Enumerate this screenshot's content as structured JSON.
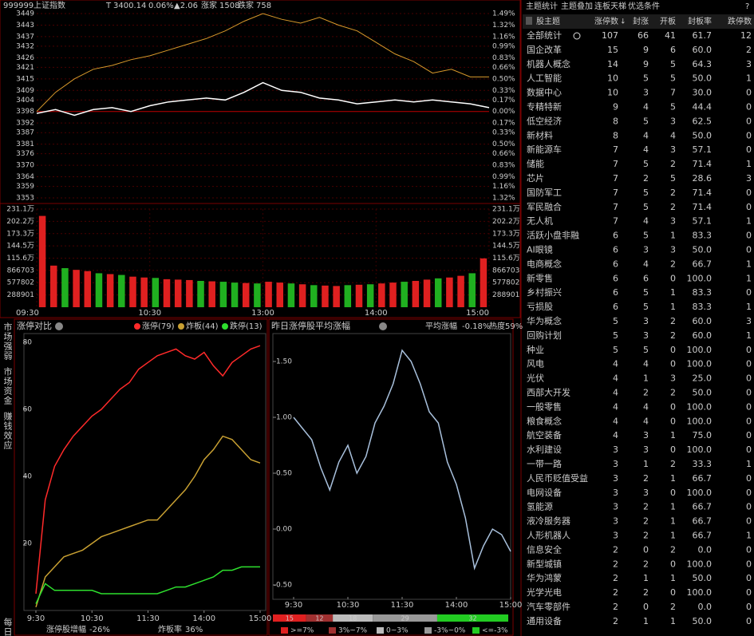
{
  "quote_header": {
    "code": "999999",
    "name": "上证指数",
    "flag": "T",
    "price": 3400.14,
    "pct": "0.06%",
    "change": "▲2.06",
    "up_label": "涨家",
    "up_count": 1508,
    "down_label": "跌家",
    "down_count": 758
  },
  "intraday": {
    "ylim": [
      3353,
      3449
    ],
    "base": 3398,
    "price_ticks": [
      3449,
      3443,
      3437,
      3432,
      3426,
      3421,
      3415,
      3409,
      3404,
      3398,
      3392,
      3387,
      3381,
      3376,
      3370,
      3364,
      3359,
      3353
    ],
    "pct_ticks": [
      {
        "value": 1.49,
        "label": "1.49%"
      },
      {
        "value": 1.32,
        "label": "1.32%"
      },
      {
        "value": 1.16,
        "label": "1.16%"
      },
      {
        "value": 0.99,
        "label": "0.99%"
      },
      {
        "value": 0.83,
        "label": "0.83%"
      },
      {
        "value": 0.66,
        "label": "0.66%"
      },
      {
        "value": 0.5,
        "label": "0.50%"
      },
      {
        "value": 0.33,
        "label": "0.33%"
      },
      {
        "value": 0.17,
        "label": "0.17%"
      },
      {
        "value": 0,
        "label": "0.00%"
      },
      {
        "value": -0.17,
        "label": "0.17%"
      },
      {
        "value": -0.33,
        "label": "0.33%"
      },
      {
        "value": -0.5,
        "label": "0.50%"
      },
      {
        "value": -0.66,
        "label": "0.66%"
      },
      {
        "value": -0.83,
        "label": "0.83%"
      },
      {
        "value": -0.99,
        "label": "0.99%"
      },
      {
        "value": -1.16,
        "label": "1.16%"
      },
      {
        "value": -1.32,
        "label": "1.32%"
      }
    ],
    "xlim": [
      0,
      240
    ],
    "xticks": [
      {
        "value": 0,
        "label": "09:30"
      },
      {
        "value": 60,
        "label": "10:30"
      },
      {
        "value": 120,
        "label": "13:00"
      },
      {
        "value": 180,
        "label": "14:00"
      },
      {
        "value": 240,
        "label": "15:00"
      }
    ],
    "x": [
      0,
      10,
      20,
      30,
      40,
      50,
      60,
      70,
      80,
      90,
      100,
      110,
      120,
      130,
      140,
      150,
      160,
      170,
      180,
      190,
      200,
      210,
      220,
      230,
      240
    ],
    "price": [
      3397,
      3399,
      3396,
      3399,
      3400,
      3398,
      3401,
      3403,
      3404,
      3405,
      3404,
      3408,
      3413,
      3409,
      3408,
      3405,
      3404,
      3402,
      3403,
      3404,
      3403,
      3404,
      3403,
      3402,
      3400
    ],
    "lead": [
      3398,
      3408,
      3415,
      3420,
      3422,
      3425,
      3427,
      3430,
      3433,
      3436,
      3440,
      3445,
      3449,
      3446,
      3444,
      3447,
      3443,
      3440,
      3434,
      3428,
      3424,
      3418,
      3420,
      3416,
      3416
    ],
    "volume": {
      "ylim": [
        0,
        2311000
      ],
      "ticks": [
        {
          "value": 2311000,
          "label": "231.1万"
        },
        {
          "value": 2022000,
          "label": "202.2万"
        },
        {
          "value": 1733000,
          "label": "173.3万"
        },
        {
          "value": 1445000,
          "label": "144.5万"
        },
        {
          "value": 1156000,
          "label": "115.6万"
        },
        866703,
        577802,
        288901
      ],
      "values": [
        2150000,
        980000,
        920000,
        880000,
        850000,
        800000,
        780000,
        760000,
        720000,
        700000,
        690000,
        660000,
        650000,
        640000,
        620000,
        610000,
        600000,
        580000,
        570000,
        560000,
        600000,
        580000,
        560000,
        540000,
        520000,
        510000,
        500000,
        520000,
        530000,
        540000,
        560000,
        580000,
        600000,
        620000,
        650000,
        680000,
        700000,
        740000,
        800000,
        1150000
      ],
      "up": [
        true,
        true,
        false,
        true,
        true,
        false,
        true,
        false,
        true,
        true,
        false,
        true,
        true,
        true,
        false,
        true,
        false,
        false,
        true,
        false,
        true,
        true,
        false,
        true,
        false,
        true,
        true,
        false,
        true,
        false,
        true,
        true,
        false,
        true,
        true,
        false,
        true,
        true,
        false,
        true
      ]
    }
  },
  "side_tabs": [
    "市场强弱",
    "市场资金",
    "赚钱效应",
    "每日"
  ],
  "limit_compare": {
    "title": "涨停对比",
    "ylim": [
      0,
      80
    ],
    "yticks": [
      80,
      60,
      40,
      20
    ],
    "xlim": [
      0,
      240
    ],
    "xticks": [
      {
        "value": 0,
        "label": "9:30"
      },
      {
        "value": 60,
        "label": "10:30"
      },
      {
        "value": 120,
        "label": "11:30"
      },
      {
        "value": 180,
        "label": "14:00"
      },
      {
        "value": 240,
        "label": "15:00"
      }
    ],
    "x": [
      0,
      10,
      20,
      30,
      40,
      50,
      60,
      70,
      80,
      90,
      100,
      110,
      120,
      130,
      140,
      150,
      160,
      170,
      180,
      190,
      200,
      210,
      220,
      230,
      240
    ],
    "series": [
      {
        "name": "涨停(79)",
        "color": "#ff2a2a",
        "values": [
          5,
          33,
          43,
          48,
          52,
          55,
          58,
          60,
          63,
          66,
          68,
          72,
          74,
          76,
          77,
          78,
          76,
          75,
          77,
          73,
          70,
          74,
          76,
          78,
          79
        ]
      },
      {
        "name": "炸板(44)",
        "color": "#c8a032",
        "values": [
          1,
          10,
          13,
          16,
          17,
          18,
          20,
          22,
          23,
          24,
          25,
          26,
          27,
          27,
          30,
          33,
          36,
          40,
          45,
          48,
          52,
          51,
          48,
          45,
          44
        ]
      },
      {
        "name": "跌停(13)",
        "color": "#2ee02e",
        "values": [
          2,
          8,
          6,
          6,
          6,
          6,
          6,
          5,
          5,
          5,
          5,
          5,
          5,
          5,
          6,
          7,
          7,
          8,
          9,
          10,
          12,
          12,
          13,
          13,
          13
        ]
      }
    ],
    "footer": [
      {
        "label": "涨停股增幅",
        "value": "-26%"
      },
      {
        "label": "炸板率",
        "value": "36%"
      }
    ]
  },
  "yesterday_limit": {
    "title": "昨日涨停股平均涨幅",
    "avg_label": "平均涨幅",
    "avg": "-0.18%",
    "heat": "热度59%",
    "ylim": [
      -0.6,
      1.7
    ],
    "yticks": [
      {
        "value": 1.5,
        "label": "1.50"
      },
      {
        "value": 1,
        "label": "1.00"
      },
      {
        "value": 0.5,
        "label": "0.50"
      },
      {
        "value": 0,
        "label": "0.00"
      },
      {
        "value": -0.5,
        "label": "-0.50"
      }
    ],
    "xlim": [
      0,
      240
    ],
    "xticks": [
      {
        "value": 0,
        "label": "9:30"
      },
      {
        "value": 60,
        "label": "10:30"
      },
      {
        "value": 120,
        "label": "11:30"
      },
      {
        "value": 180,
        "label": "14:00"
      },
      {
        "value": 240,
        "label": "15:00"
      }
    ],
    "x": [
      0,
      10,
      20,
      30,
      40,
      50,
      60,
      70,
      80,
      90,
      100,
      110,
      120,
      130,
      140,
      150,
      160,
      170,
      180,
      190,
      200,
      210,
      220,
      230,
      240
    ],
    "values": [
      1.0,
      0.9,
      0.8,
      0.55,
      0.35,
      0.6,
      0.75,
      0.5,
      0.65,
      0.95,
      1.1,
      1.3,
      1.6,
      1.5,
      1.3,
      1.05,
      0.95,
      0.6,
      0.4,
      0.1,
      -0.35,
      -0.15,
      0.0,
      -0.05,
      -0.2
    ],
    "distribution": [
      {
        "name": ">=7%",
        "color": "#e02020",
        "count": 15
      },
      {
        "name": "3%~7%",
        "color": "#a03030",
        "count": 12
      },
      {
        "name": "0~3%",
        "color": "#bbbbbb",
        "count": 18
      },
      {
        "name": "-3%~0%",
        "color": "#999999",
        "count": 29
      },
      {
        "name": "<=-3%",
        "color": "#22cc22",
        "count": 32
      }
    ]
  },
  "theme_table": {
    "tabs": [
      "主题统计",
      "主题叠加",
      "连板天梯",
      "优选条件",
      "?"
    ],
    "columns": [
      "股主题",
      "涨停数",
      "封涨",
      "开板",
      "封板率",
      "跌停数"
    ],
    "rows": [
      [
        "全部统计",
        107,
        66,
        41,
        "61.7",
        12
      ],
      [
        "国企改革",
        15,
        9,
        6,
        "60.0",
        2
      ],
      [
        "机器人概念",
        14,
        9,
        5,
        "64.3",
        3
      ],
      [
        "人工智能",
        10,
        5,
        5,
        "50.0",
        1
      ],
      [
        "数据中心",
        10,
        3,
        7,
        "30.0",
        0
      ],
      [
        "专精特新",
        9,
        4,
        5,
        "44.4",
        0
      ],
      [
        "低空经济",
        8,
        5,
        3,
        "62.5",
        0
      ],
      [
        "新材料",
        8,
        4,
        4,
        "50.0",
        0
      ],
      [
        "新能源车",
        7,
        4,
        3,
        "57.1",
        0
      ],
      [
        "储能",
        7,
        5,
        2,
        "71.4",
        1
      ],
      [
        "芯片",
        7,
        2,
        5,
        "28.6",
        3
      ],
      [
        "国防军工",
        7,
        5,
        2,
        "71.4",
        0
      ],
      [
        "军民融合",
        7,
        5,
        2,
        "71.4",
        0
      ],
      [
        "无人机",
        7,
        4,
        3,
        "57.1",
        1
      ],
      [
        "活跃小盘非融",
        6,
        5,
        1,
        "83.3",
        0
      ],
      [
        "AI眼镜",
        6,
        3,
        3,
        "50.0",
        0
      ],
      [
        "电商概念",
        6,
        4,
        2,
        "66.7",
        1
      ],
      [
        "新零售",
        6,
        6,
        0,
        "100.0",
        1
      ],
      [
        "乡村振兴",
        6,
        5,
        1,
        "83.3",
        0
      ],
      [
        "亏损股",
        6,
        5,
        1,
        "83.3",
        1
      ],
      [
        "华为概念",
        5,
        3,
        2,
        "60.0",
        3
      ],
      [
        "回购计划",
        5,
        3,
        2,
        "60.0",
        1
      ],
      [
        "种业",
        5,
        5,
        0,
        "100.0",
        0
      ],
      [
        "风电",
        4,
        4,
        0,
        "100.0",
        0
      ],
      [
        "光伏",
        4,
        1,
        3,
        "25.0",
        0
      ],
      [
        "西部大开发",
        4,
        2,
        2,
        "50.0",
        0
      ],
      [
        "一般零售",
        4,
        4,
        0,
        "100.0",
        0
      ],
      [
        "粮食概念",
        4,
        4,
        0,
        "100.0",
        0
      ],
      [
        "航空装备",
        4,
        3,
        1,
        "75.0",
        0
      ],
      [
        "水利建设",
        3,
        3,
        0,
        "100.0",
        0
      ],
      [
        "一带一路",
        3,
        1,
        2,
        "33.3",
        1
      ],
      [
        "人民币贬值受益",
        3,
        2,
        1,
        "66.7",
        0
      ],
      [
        "电网设备",
        3,
        3,
        0,
        "100.0",
        0
      ],
      [
        "氢能源",
        3,
        2,
        1,
        "66.7",
        0
      ],
      [
        "液冷服务器",
        3,
        2,
        1,
        "66.7",
        0
      ],
      [
        "人形机器人",
        3,
        2,
        1,
        "66.7",
        1
      ],
      [
        "信息安全",
        2,
        0,
        2,
        "0.0",
        0
      ],
      [
        "新型城镇",
        2,
        2,
        0,
        "100.0",
        0
      ],
      [
        "华为鸿蒙",
        2,
        1,
        1,
        "50.0",
        0
      ],
      [
        "光学光电",
        2,
        2,
        0,
        "100.0",
        0
      ],
      [
        "汽车零部件",
        2,
        0,
        2,
        "0.0",
        0
      ],
      [
        "通用设备",
        2,
        1,
        1,
        "50.0",
        0
      ]
    ]
  }
}
